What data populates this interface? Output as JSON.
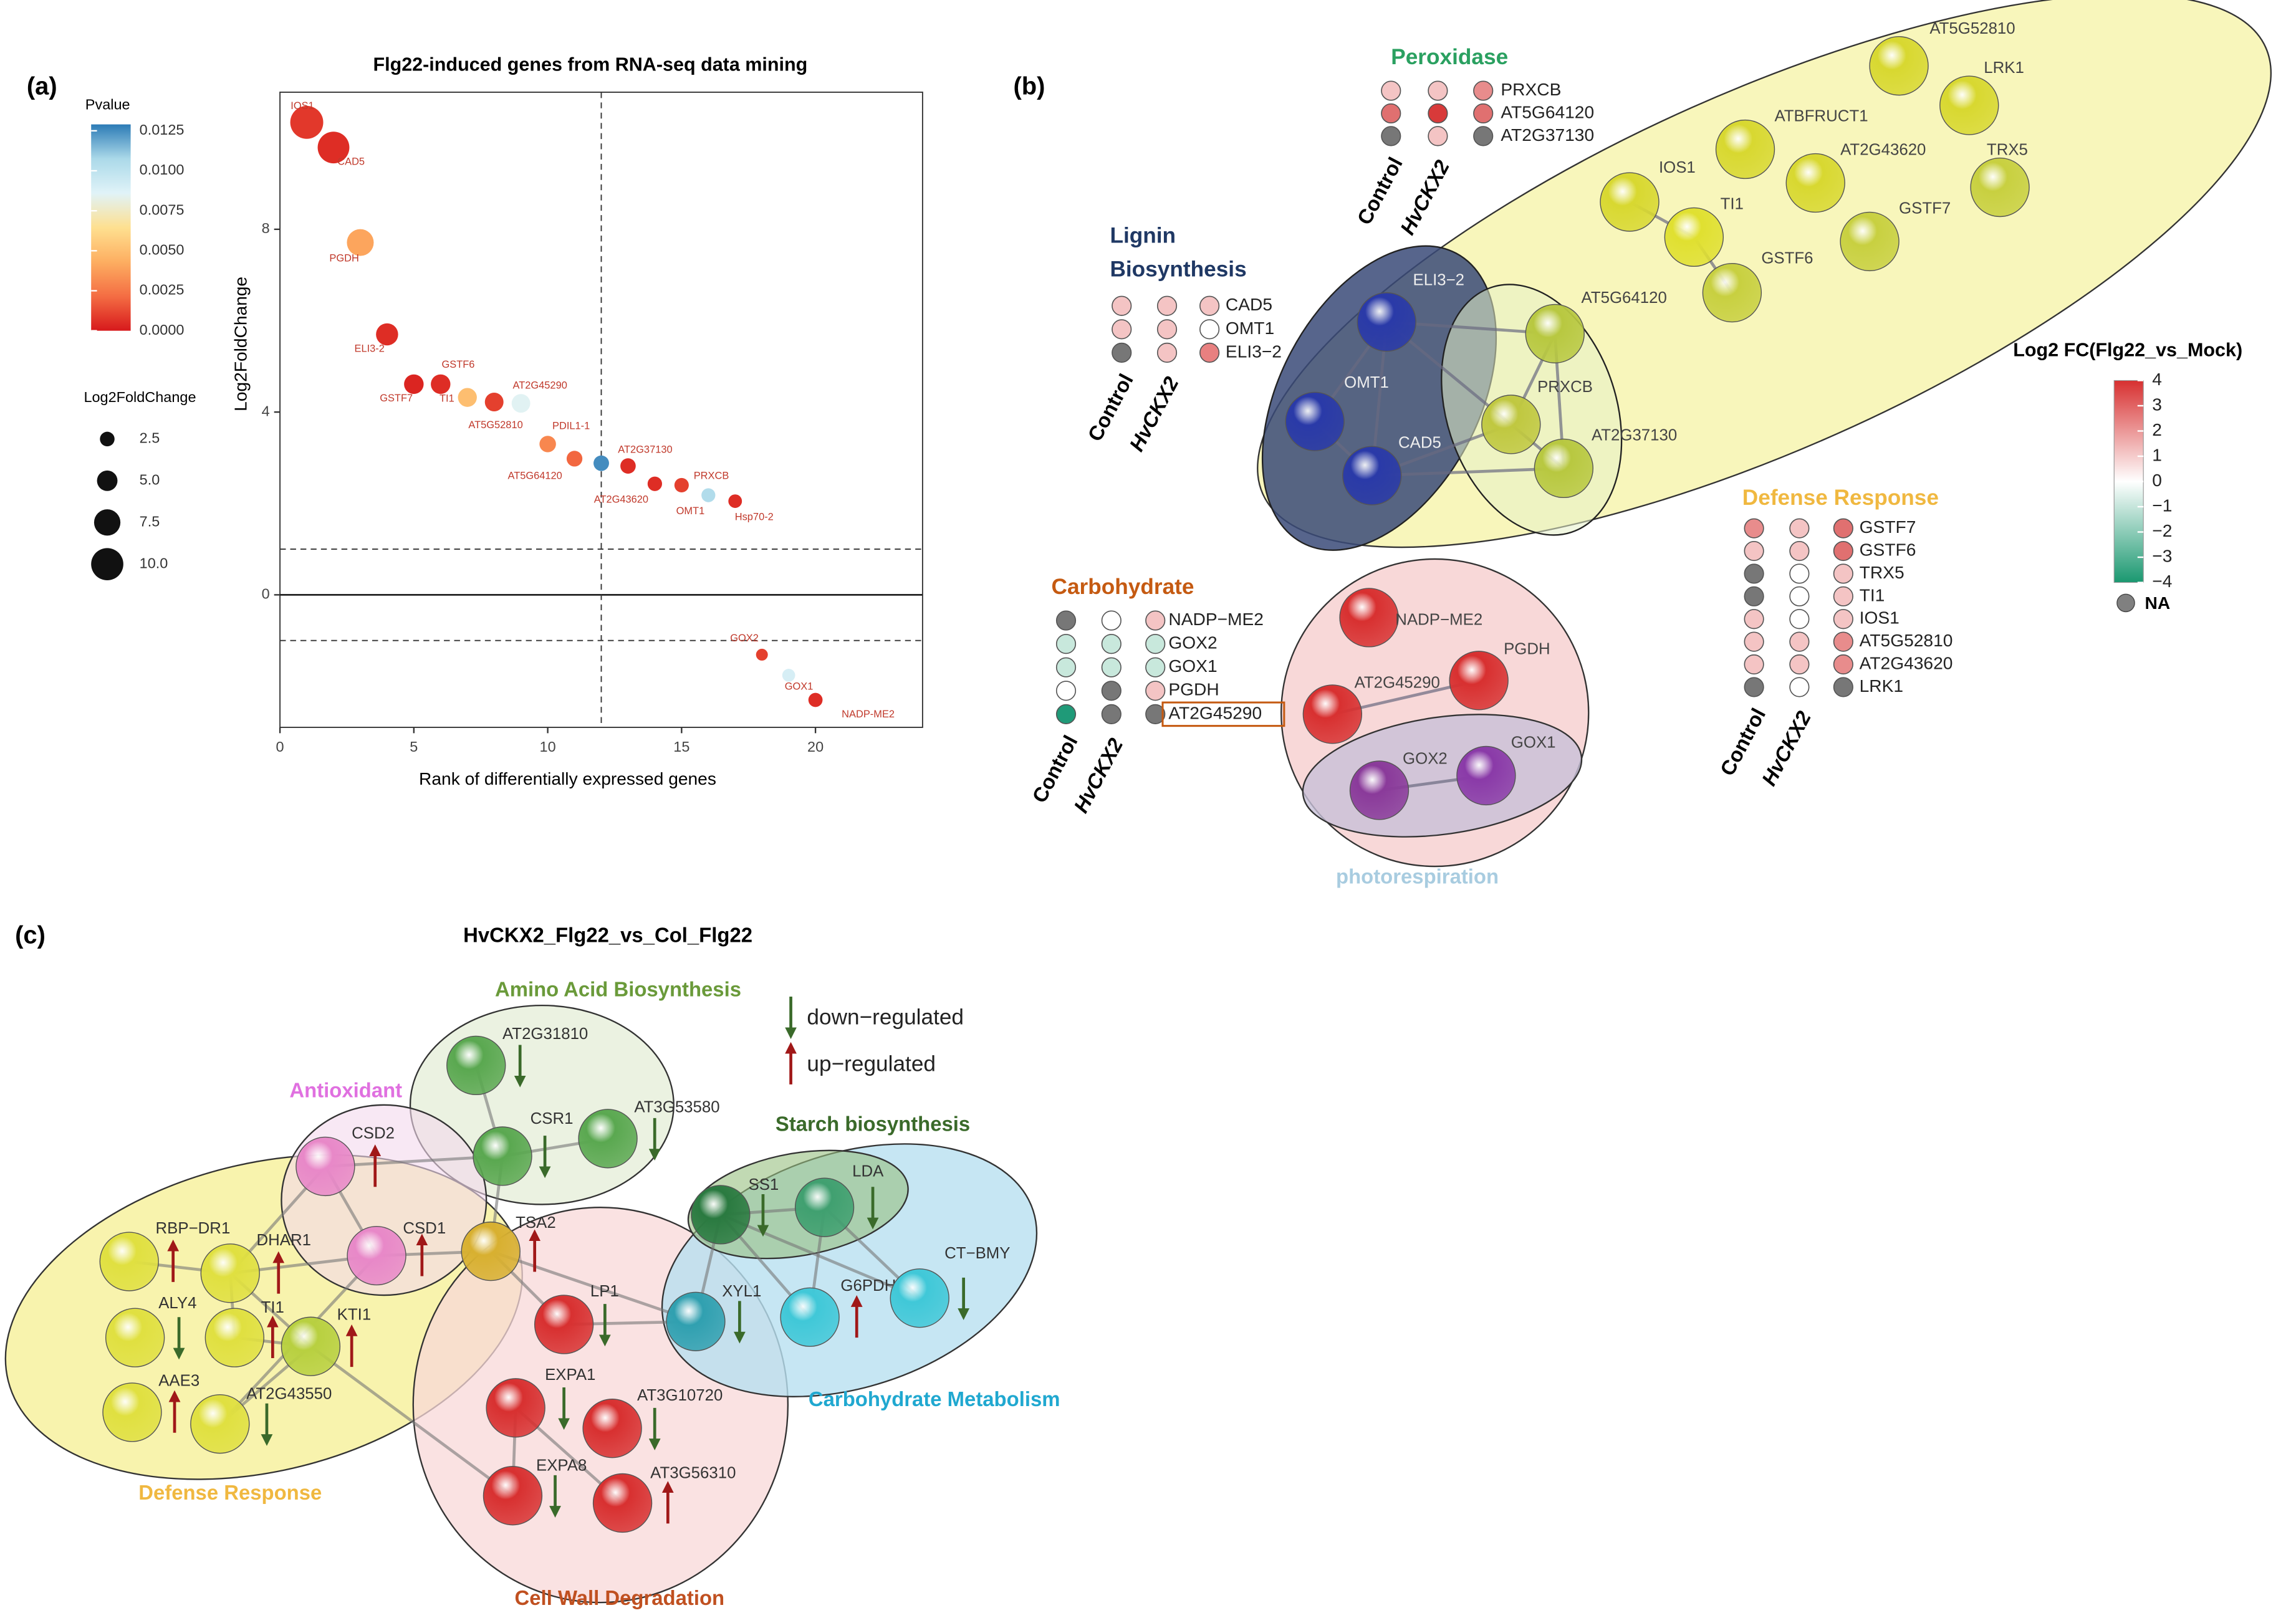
{
  "panel_labels": [
    "(a)",
    "(b)",
    "(c)"
  ],
  "chart_data": {
    "type": "scatter",
    "title": "Flg22-induced genes from RNA-seq data mining",
    "xlabel": "Rank of differentially expressed genes",
    "ylabel": "Log2FoldChange",
    "x": [
      1,
      2,
      3,
      4,
      5,
      6,
      7,
      8,
      9,
      10,
      11,
      12,
      13,
      14,
      15,
      16,
      17,
      18,
      19,
      20
    ],
    "values": [
      10.34,
      9.79,
      7.71,
      5.7,
      4.61,
      4.61,
      4.32,
      4.22,
      4.19,
      3.3,
      2.98,
      2.88,
      2.82,
      2.43,
      2.4,
      2.18,
      2.05,
      -1.31,
      -1.76,
      -2.3
    ],
    "sizes": [
      10.34,
      9.79,
      7.71,
      5.7,
      4.61,
      4.61,
      4.32,
      4.22,
      4.19,
      3.3,
      2.98,
      2.88,
      2.82,
      2.43,
      2.4,
      2.18,
      2.05,
      1.31,
      1.76,
      2.3
    ],
    "pvalues": [
      0.0008,
      0.0005,
      0.004,
      0.0005,
      0.0003,
      0.0005,
      0.005,
      0.001,
      0.0085,
      0.003,
      0.002,
      0.0125,
      0.0005,
      0.0005,
      0.001,
      0.0105,
      0.0005,
      0.001,
      0.009,
      0.0005
    ],
    "point_labels": [
      "IOS1",
      "CAD5",
      "PGDH",
      "ELI3-2",
      "GSTF7",
      "GSTF6",
      "TI1",
      "AT5G52810",
      "AT2G45290",
      "PDIL1-1",
      "AT5G64120",
      "AT2G37130",
      null,
      "AT2G43620",
      "OMT1",
      "PRXCB",
      "Hsp70-2",
      "GOX2",
      "GOX1",
      "NADP-ME2"
    ],
    "xlim": [
      0,
      24
    ],
    "ylim": [
      -2.9,
      11
    ],
    "xticks": [
      0,
      5,
      10,
      15,
      20
    ],
    "yticks": [
      0,
      4,
      8
    ],
    "vlines_dashed": [
      12
    ],
    "hlines_dashed": [
      1,
      -1
    ],
    "grid": false,
    "pvalue_legend": {
      "title": "Pvalue",
      "lim": [
        0,
        0.0129
      ],
      "colorscale": [
        "#d7191c",
        "#f46d43",
        "#fdae61",
        "#fee090",
        "#e0f3f8",
        "#abd9e9",
        "#2c7bb6"
      ],
      "ticks": [
        {
          "value": 0,
          "label": "0.0000"
        },
        0.0025,
        {
          "value": 0.005,
          "label": "0.0050"
        },
        0.0075,
        {
          "value": 0.01,
          "label": "0.0100"
        },
        0.0125
      ]
    },
    "size_legend": {
      "title": "Log2FoldChange",
      "values": [
        2.5,
        {
          "value": 5,
          "label": "5.0"
        },
        7.5,
        {
          "value": 10,
          "label": "10.0"
        }
      ]
    }
  },
  "panel_b": {
    "groups": [
      {
        "title_lines": [
          "Peroxidase"
        ],
        "color": "#2aa060",
        "columns": [
          "Control",
          "HvCKX2"
        ],
        "genes": [
          "PRXCB",
          "AT5G64120",
          "AT2G37130"
        ],
        "cells": [
          [
            "#f4c4c4",
            "#f4c4c4",
            "#e88c8c"
          ],
          [
            "#e07070",
            "#d83a3a",
            "#e07070"
          ],
          [
            "#777777",
            "#f4c4c4",
            "#777777"
          ]
        ]
      },
      {
        "title_lines": [
          "Lignin",
          "Biosynthesis"
        ],
        "color": "#1f3864",
        "columns": [
          "Control",
          "HvCKX2"
        ],
        "genes": [
          "CAD5",
          "OMT1",
          "ELI3−2"
        ],
        "cells": [
          [
            "#f4c4c4",
            "#f4c4c4",
            "#f4c4c4"
          ],
          [
            "#f4c4c4",
            "#f4c4c4",
            "#ffffff"
          ],
          [
            "#777777",
            "#f4c4c4",
            "#e88080"
          ]
        ]
      },
      {
        "title_lines": [
          "Carbohydrate"
        ],
        "color": "#c55a11",
        "columns": [
          "Control",
          "HvCKX2"
        ],
        "genes": [
          "NADP−ME2",
          "GOX2",
          "GOX1",
          "PGDH",
          "AT2G45290"
        ],
        "cells": [
          [
            "#777777",
            "#ffffff",
            "#f4c4c4"
          ],
          [
            "#c8e8dc",
            "#c8e8dc",
            "#c8e8dc"
          ],
          [
            "#c8e8dc",
            "#c8e8dc",
            "#c8e8dc"
          ],
          [
            "#ffffff",
            "#777777",
            "#f4c4c4"
          ],
          [
            "#1f9a78",
            "#777777",
            "#777777"
          ]
        ]
      },
      {
        "title_lines": [
          "Defense Response"
        ],
        "color": "#f0b840",
        "columns": [
          "Control",
          "HvCKX2"
        ],
        "genes": [
          "GSTF7",
          "GSTF6",
          "TRX5",
          "TI1",
          "IOS1",
          "AT5G52810",
          "AT2G43620",
          "LRK1"
        ],
        "cells": [
          [
            "#e88c8c",
            "#f4c4c4",
            "#e07070"
          ],
          [
            "#f4c4c4",
            "#f4c4c4",
            "#e07070"
          ],
          [
            "#777777",
            "#ffffff",
            "#f4c4c4"
          ],
          [
            "#777777",
            "#ffffff",
            "#f4c4c4"
          ],
          [
            "#f4c4c4",
            "#ffffff",
            "#f4c4c4"
          ],
          [
            "#f4c4c4",
            "#f4c4c4",
            "#e88c8c"
          ],
          [
            "#f4c4c4",
            "#f4c4c4",
            "#e88c8c"
          ],
          [
            "#777777",
            "#ffffff",
            "#777777"
          ]
        ]
      }
    ],
    "cluster_label": "photorespiration",
    "nodes": [
      {
        "label": "AT5G52810",
        "color": "#d8d830"
      },
      {
        "label": "LRK1",
        "color": "#d8d830"
      },
      {
        "label": "ATBFRUCT1",
        "color": "#d8d830"
      },
      {
        "label": "AT2G43620",
        "color": "#d8d830"
      },
      {
        "label": "TRX5",
        "color": "#c8d040"
      },
      {
        "label": "GSTF7",
        "color": "#c8d040"
      },
      {
        "label": "IOS1",
        "color": "#d8d830"
      },
      {
        "label": "TI1",
        "color": "#e0e030"
      },
      {
        "label": "GSTF6",
        "color": "#c8d040"
      },
      {
        "label": "AT5G64120",
        "color": "#b8c840"
      },
      {
        "label": "ELI3−2",
        "color": "#2a3aa8"
      },
      {
        "label": "OMT1",
        "color": "#2a3aa8"
      },
      {
        "label": "CAD5",
        "color": "#2a3aa8"
      },
      {
        "label": "PRXCB",
        "color": "#c0c840"
      },
      {
        "label": "AT2G37130",
        "color": "#b8c840"
      },
      {
        "label": "NADP−ME2",
        "color": "#d83030"
      },
      {
        "label": "PGDH",
        "color": "#d83030"
      },
      {
        "label": "AT2G45290",
        "color": "#d83030"
      },
      {
        "label": "GOX2",
        "color": "#8a3a9a"
      },
      {
        "label": "GOX1",
        "color": "#8a3aa8"
      }
    ],
    "legend": {
      "title": "Log2 FC(Flg22_vs_Mock)",
      "lim": [
        -4,
        4
      ],
      "colors": [
        "#1a9870",
        "#ffffff",
        "#d73030"
      ],
      "ticks": [
        4,
        3,
        2,
        1,
        0,
        {
          "value": -1,
          "label": "−1"
        },
        {
          "value": -2,
          "label": "−2"
        },
        {
          "value": -3,
          "label": "−3"
        },
        {
          "value": -4,
          "label": "−4"
        }
      ],
      "na_label": "NA",
      "na_color": "#808080"
    }
  },
  "panel_c": {
    "title": "HvCKX2_Flg22_vs_Col_Flg22",
    "groups": [
      {
        "title": "Amino Acid Biosynthesis",
        "color": "#6a9a3a"
      },
      {
        "title": "Antioxidant",
        "color": "#e070e0"
      },
      {
        "title": "Starch biosynthesis",
        "color": "#3a6a2a"
      },
      {
        "title": "Carbohydrate Metabolism",
        "color": "#20a8d0"
      },
      {
        "title": "Defense Response",
        "color": "#f0b840"
      },
      {
        "title": "Cell Wall Degradation",
        "color": "#c05020"
      }
    ],
    "legend": {
      "down": "down−regulated",
      "up": "up−regulated",
      "down_color": "#3a6a2a",
      "up_color": "#a01818"
    },
    "nodes": [
      {
        "label": "AT2G31810",
        "color": "#5aa850",
        "regulation": "down"
      },
      {
        "label": "CSR1",
        "color": "#5aa850",
        "regulation": "down"
      },
      {
        "label": "AT3G53580",
        "color": "#5aa850",
        "regulation": "down"
      },
      {
        "label": "CSD2",
        "color": "#e888c8",
        "regulation": "up"
      },
      {
        "label": "CSD1",
        "color": "#e888c8",
        "regulation": "up"
      },
      {
        "label": "TSA2",
        "color": "#d8b030",
        "regulation": "up"
      },
      {
        "label": "RBP−DR1",
        "color": "#e0e040",
        "regulation": "up"
      },
      {
        "label": "DHAR1",
        "color": "#e0e040",
        "regulation": "up"
      },
      {
        "label": "ALY4",
        "color": "#e0e040",
        "regulation": "down"
      },
      {
        "label": "TI1",
        "color": "#e0e040",
        "regulation": "up"
      },
      {
        "label": "KTI1",
        "color": "#b8d040",
        "regulation": "up"
      },
      {
        "label": "AAE3",
        "color": "#e0e040",
        "regulation": "up"
      },
      {
        "label": "AT2G43550",
        "color": "#e0e040",
        "regulation": "down"
      },
      {
        "label": "SS1",
        "color": "#2a7a40",
        "regulation": "down"
      },
      {
        "label": "LDA",
        "color": "#40a070",
        "regulation": "down"
      },
      {
        "label": "XYL1",
        "color": "#30a0b0",
        "regulation": "down"
      },
      {
        "label": "G6PDH",
        "color": "#40c8d8",
        "regulation": "up"
      },
      {
        "label": "CT−BMY",
        "color": "#40c8d8",
        "regulation": "down"
      },
      {
        "label": "LP1",
        "color": "#d83030",
        "regulation": "down"
      },
      {
        "label": "EXPA1",
        "color": "#d83030",
        "regulation": "down"
      },
      {
        "label": "AT3G10720",
        "color": "#d83030",
        "regulation": "down"
      },
      {
        "label": "EXPA8",
        "color": "#d83030",
        "regulation": "down"
      },
      {
        "label": "AT3G56310",
        "color": "#d83030",
        "regulation": "up"
      }
    ]
  }
}
